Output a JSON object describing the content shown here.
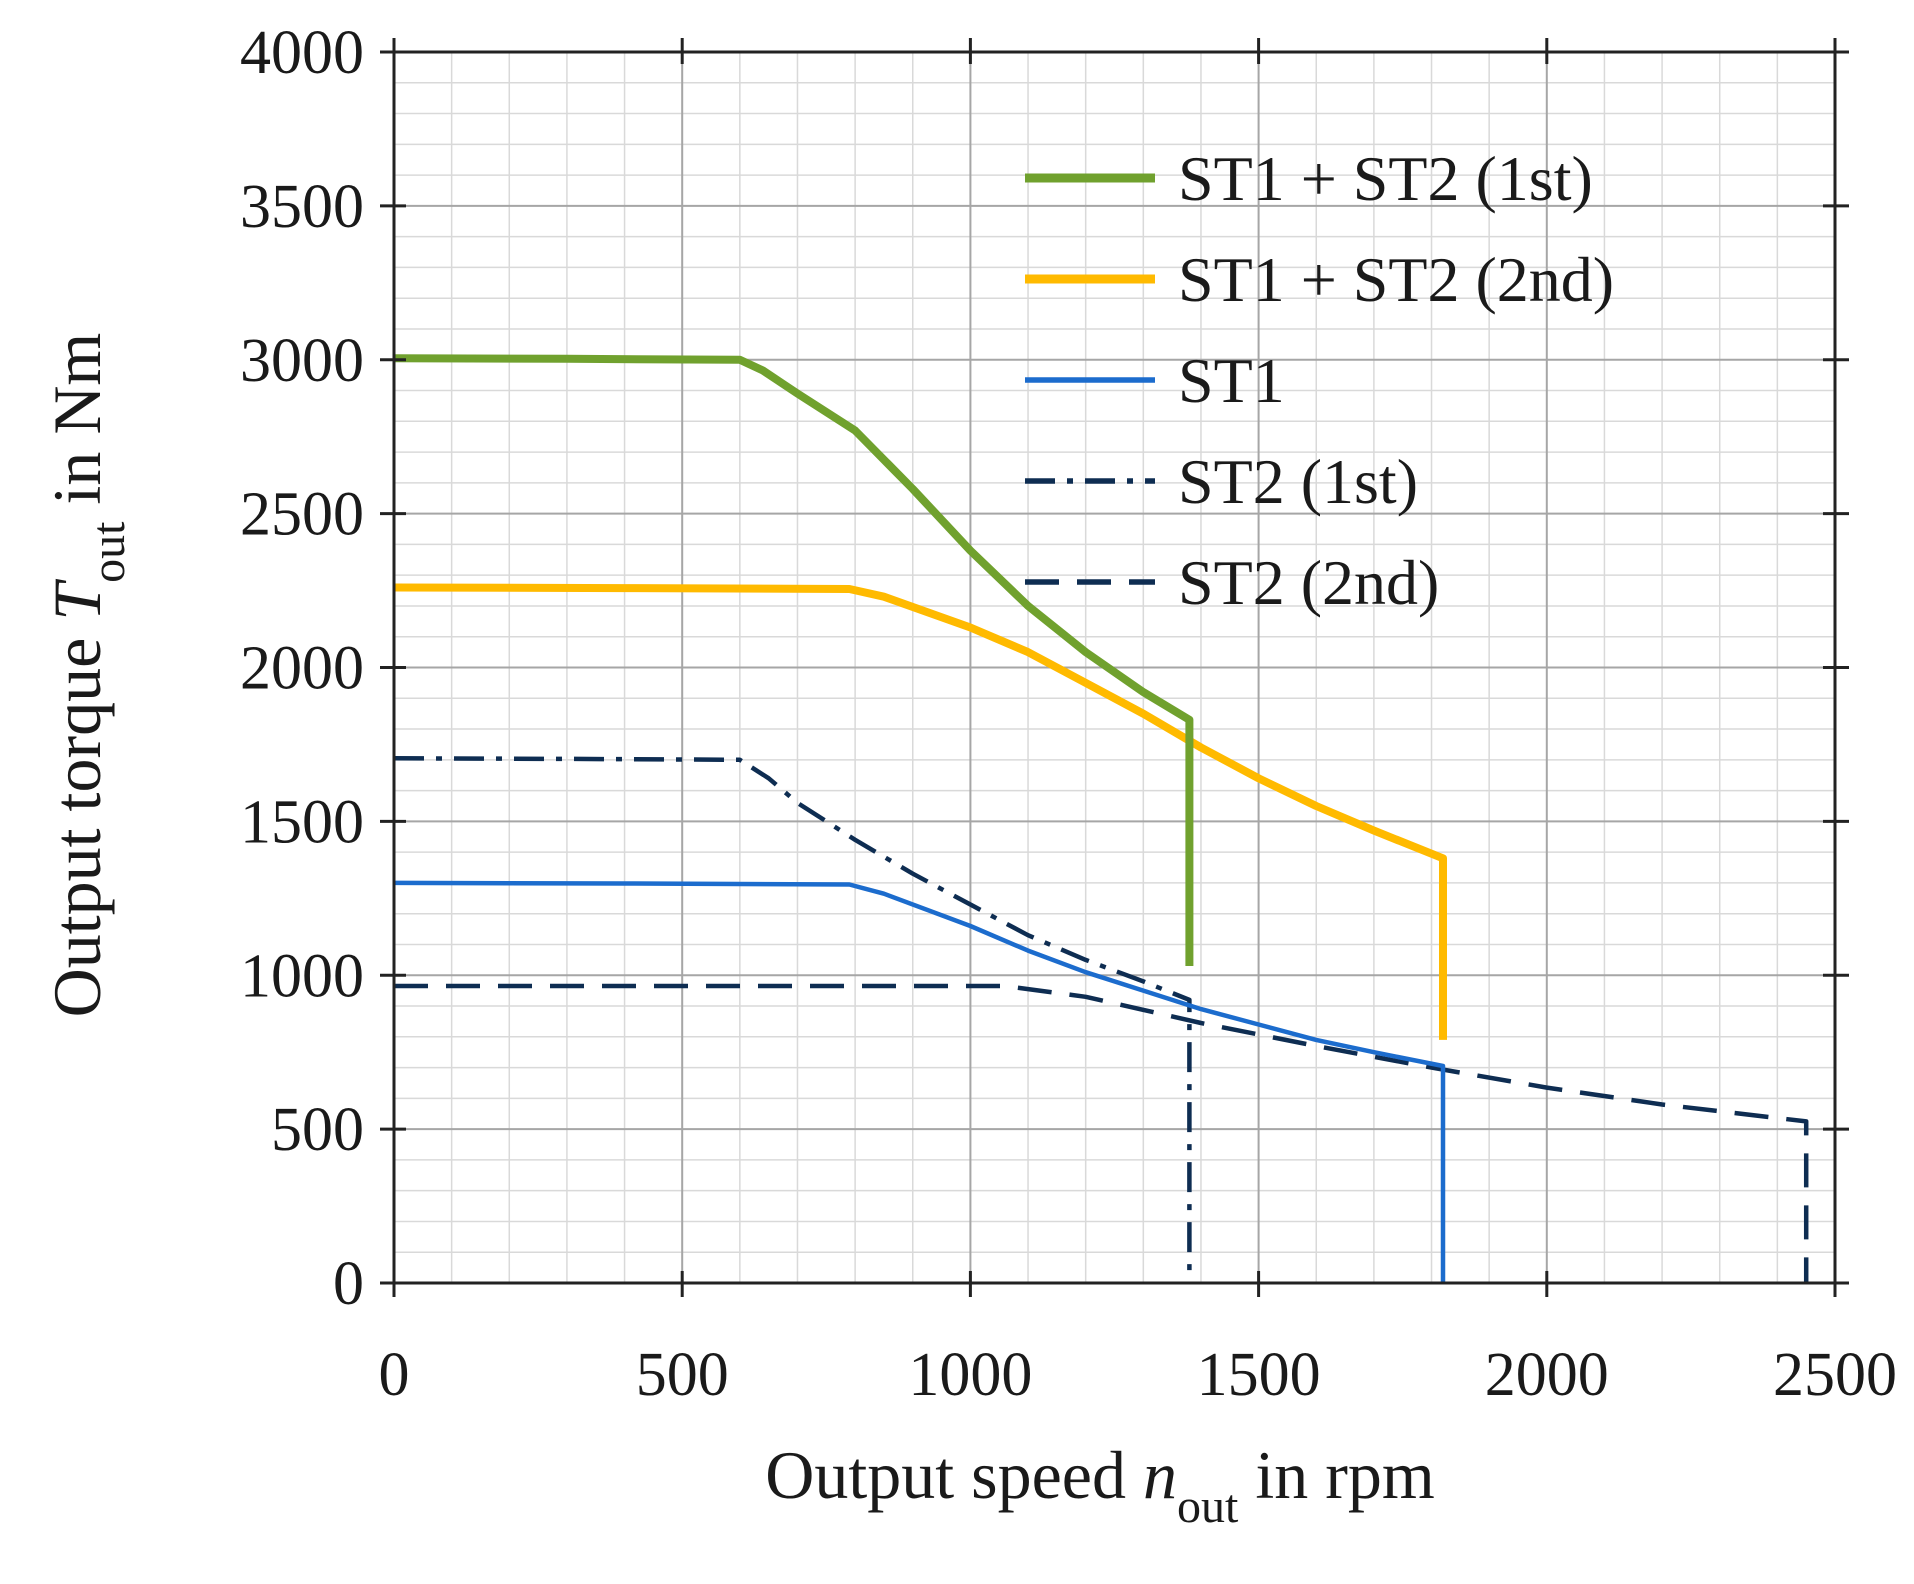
{
  "chart_data": {
    "type": "line",
    "title": "",
    "xlabel": {
      "main": "Output speed ",
      "symbol": "n",
      "subscript": "out",
      "suffix": " in rpm"
    },
    "ylabel": {
      "main": "Output torque ",
      "symbol": "T",
      "subscript": "out",
      "suffix": " in Nm"
    },
    "xlim": [
      0,
      2500
    ],
    "ylim": [
      0,
      4000
    ],
    "x_ticks": [
      0,
      500,
      1000,
      1500,
      2000,
      2500
    ],
    "y_ticks": [
      0,
      500,
      1000,
      1500,
      2000,
      2500,
      3000,
      3500,
      4000
    ],
    "x_tick_labels": [
      "0",
      "500",
      "1000",
      "1500",
      "2000",
      "2500"
    ],
    "y_tick_labels": [
      "0",
      "500",
      "1000",
      "1500",
      "2000",
      "2500",
      "3000",
      "3500",
      "4000"
    ],
    "minor_grid_step_x": 100,
    "minor_grid_step_y": 100,
    "grid": true,
    "legend_position": "top-right",
    "series": [
      {
        "name": "ST1 + ST2 (1st)",
        "color": "#70a12e",
        "style": "solid",
        "weight": "thick",
        "points": [
          [
            0,
            3005
          ],
          [
            300,
            3003
          ],
          [
            600,
            3000
          ],
          [
            640,
            2965
          ],
          [
            700,
            2890
          ],
          [
            800,
            2770
          ],
          [
            900,
            2580
          ],
          [
            1000,
            2380
          ],
          [
            1100,
            2200
          ],
          [
            1200,
            2050
          ],
          [
            1300,
            1920
          ],
          [
            1380,
            1830
          ],
          [
            1380,
            1030
          ]
        ]
      },
      {
        "name": "ST1 + ST2 (2nd)",
        "color": "#ffba00",
        "style": "solid",
        "weight": "thick",
        "points": [
          [
            0,
            2260
          ],
          [
            400,
            2258
          ],
          [
            790,
            2255
          ],
          [
            850,
            2230
          ],
          [
            1000,
            2130
          ],
          [
            1100,
            2050
          ],
          [
            1200,
            1950
          ],
          [
            1300,
            1850
          ],
          [
            1400,
            1740
          ],
          [
            1500,
            1640
          ],
          [
            1600,
            1550
          ],
          [
            1700,
            1470
          ],
          [
            1820,
            1380
          ],
          [
            1820,
            790
          ]
        ]
      },
      {
        "name": "ST1",
        "color": "#1c6ccd",
        "style": "solid",
        "weight": "thin",
        "points": [
          [
            0,
            1300
          ],
          [
            400,
            1298
          ],
          [
            790,
            1295
          ],
          [
            850,
            1265
          ],
          [
            1000,
            1160
          ],
          [
            1100,
            1080
          ],
          [
            1200,
            1010
          ],
          [
            1300,
            950
          ],
          [
            1400,
            890
          ],
          [
            1500,
            840
          ],
          [
            1600,
            790
          ],
          [
            1700,
            750
          ],
          [
            1820,
            705
          ],
          [
            1820,
            0
          ]
        ]
      },
      {
        "name": "ST2 (1st)",
        "color": "#0e2d52",
        "style": "dashdot",
        "weight": "thin",
        "points": [
          [
            0,
            1705
          ],
          [
            300,
            1703
          ],
          [
            600,
            1700
          ],
          [
            650,
            1640
          ],
          [
            700,
            1560
          ],
          [
            800,
            1440
          ],
          [
            900,
            1330
          ],
          [
            1000,
            1230
          ],
          [
            1100,
            1130
          ],
          [
            1200,
            1050
          ],
          [
            1300,
            980
          ],
          [
            1380,
            920
          ],
          [
            1380,
            0
          ]
        ]
      },
      {
        "name": "ST2 (2nd)",
        "color": "#0e2d52",
        "style": "dashed",
        "weight": "thin",
        "points": [
          [
            0,
            965
          ],
          [
            500,
            965
          ],
          [
            1060,
            965
          ],
          [
            1200,
            930
          ],
          [
            1400,
            845
          ],
          [
            1600,
            770
          ],
          [
            1800,
            700
          ],
          [
            2000,
            635
          ],
          [
            2200,
            580
          ],
          [
            2450,
            525
          ],
          [
            2450,
            0
          ]
        ]
      }
    ]
  }
}
